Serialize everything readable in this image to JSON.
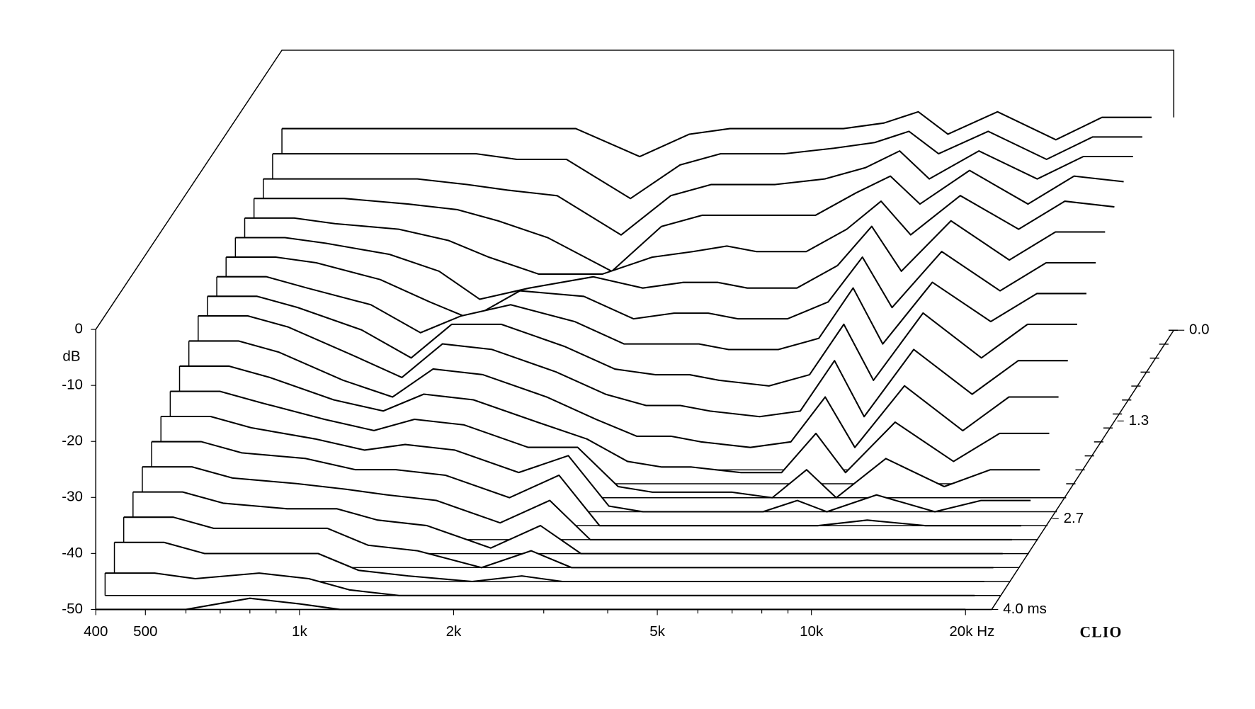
{
  "chart_data": {
    "type": "waterfall",
    "x": [
      400,
      500,
      600,
      800,
      1000,
      1200,
      1500,
      2000,
      2500,
      3000,
      3500,
      4000,
      5000,
      6000,
      7000,
      8000,
      10000,
      13000,
      16000,
      20000
    ],
    "z": [
      0,
      0.2,
      0.4,
      0.6,
      0.8,
      1.0,
      1.2,
      1.4,
      1.6,
      1.8,
      2.0,
      2.2,
      2.4,
      2.6,
      2.8,
      3.0,
      3.2,
      3.4,
      3.6,
      3.8,
      4.0
    ],
    "values": [
      [
        -14,
        -14,
        -14,
        -14,
        -14,
        -14,
        -14,
        -19,
        -15,
        -14,
        -14,
        -14,
        -14,
        -13,
        -11,
        -15,
        -11,
        -16,
        -12,
        -12
      ],
      [
        -16,
        -16,
        -16,
        -16,
        -16,
        -17,
        -17,
        -24,
        -18,
        -16,
        -16,
        -16,
        -15,
        -14,
        -12,
        -16,
        -12,
        -17,
        -13,
        -13
      ],
      [
        -18,
        -18,
        -18,
        -18,
        -19,
        -20,
        -21,
        -28,
        -21,
        -19,
        -19,
        -19,
        -18,
        -16,
        -13,
        -18,
        -13,
        -18,
        -14,
        -14
      ],
      [
        -19,
        -19,
        -19,
        -20,
        -21,
        -23,
        -26,
        -32,
        -24,
        -22,
        -22,
        -22,
        -22,
        -18,
        -15,
        -20,
        -14,
        -20,
        -15,
        -16
      ],
      [
        -20,
        -20,
        -21,
        -22,
        -24,
        -27,
        -30,
        -30,
        -27,
        -26,
        -25,
        -26,
        -26,
        -22,
        -17,
        -23,
        -16,
        -22,
        -17,
        -18
      ],
      [
        -21,
        -21,
        -22,
        -24,
        -27,
        -32,
        -30,
        -28,
        -30,
        -29,
        -29,
        -30,
        -30,
        -26,
        -19,
        -27,
        -18,
        -25,
        -20,
        -20
      ],
      [
        -22,
        -22,
        -23,
        -26,
        -30,
        -33,
        -28,
        -29,
        -33,
        -32,
        -32,
        -33,
        -33,
        -30,
        -22,
        -31,
        -21,
        -28,
        -23,
        -23
      ],
      [
        -23,
        -23,
        -25,
        -28,
        -33,
        -30,
        -28,
        -31,
        -35,
        -35,
        -35,
        -36,
        -36,
        -34,
        -25,
        -35,
        -24,
        -31,
        -26,
        -26
      ],
      [
        -24,
        -24,
        -26,
        -30,
        -35,
        -29,
        -29,
        -33,
        -37,
        -38,
        -38,
        -39,
        -40,
        -38,
        -29,
        -39,
        -27,
        -35,
        -29,
        -29
      ],
      [
        -25,
        -25,
        -27,
        -32,
        -36,
        -30,
        -31,
        -35,
        -39,
        -41,
        -41,
        -42,
        -43,
        -42,
        -33,
        -43,
        -31,
        -39,
        -33,
        -33
      ],
      [
        -27,
        -27,
        -29,
        -34,
        -37,
        -32,
        -33,
        -37,
        -41,
        -44,
        -44,
        -45,
        -46,
        -45,
        -37,
        -46,
        -35,
        -43,
        -37,
        -37
      ],
      [
        -29,
        -29,
        -31,
        -35,
        -37,
        -34,
        -35,
        -39,
        -42,
        -46,
        -47,
        -47,
        -48,
        -48,
        -41,
        -48,
        -39,
        -46,
        -41,
        -41
      ],
      [
        -31,
        -31,
        -33,
        -36,
        -38,
        -36,
        -37,
        -41,
        -41,
        -48,
        -49,
        -49,
        -49,
        -50,
        -45,
        -50,
        -43,
        -48,
        -45,
        -45
      ],
      [
        -33,
        -33,
        -35,
        -37,
        -39,
        -38,
        -39,
        -43,
        -40,
        -49,
        -50,
        -50,
        -50,
        -50,
        -48,
        -50,
        -47,
        -50,
        -48,
        -48
      ],
      [
        -35,
        -35,
        -37,
        -38,
        -40,
        -40,
        -41,
        -45,
        -41,
        -50,
        -50,
        -50,
        -50,
        -50,
        -50,
        -50,
        -49,
        -50,
        -50,
        -50
      ],
      [
        -37,
        -37,
        -39,
        -40,
        -41,
        -42,
        -43,
        -47,
        -43,
        -50,
        -50,
        -50,
        -50,
        -50,
        -50,
        -50,
        -50,
        -50,
        -50,
        -50
      ],
      [
        -39,
        -39,
        -41,
        -42,
        -42,
        -44,
        -45,
        -49,
        -45,
        -50,
        -50,
        -50,
        -50,
        -50,
        -50,
        -50,
        -50,
        -50,
        -50,
        -50
      ],
      [
        -41,
        -41,
        -43,
        -43,
        -43,
        -46,
        -47,
        -50,
        -47,
        -50,
        -50,
        -50,
        -50,
        -50,
        -50,
        -50,
        -50,
        -50,
        -50,
        -50
      ],
      [
        -43,
        -43,
        -45,
        -45,
        -45,
        -48,
        -49,
        -50,
        -49,
        -50,
        -50,
        -50,
        -50,
        -50,
        -50,
        -50,
        -50,
        -50,
        -50,
        -50
      ],
      [
        -46,
        -46,
        -47,
        -46,
        -47,
        -49,
        -50,
        -50,
        -50,
        -50,
        -50,
        -50,
        -50,
        -50,
        -50,
        -50,
        -50,
        -50,
        -50,
        -50
      ],
      [
        -50,
        -50,
        -50,
        -48,
        -49,
        -50,
        -50,
        -50,
        -50,
        -50,
        -50,
        -50,
        -50,
        -50,
        -50,
        -50,
        -50,
        -50,
        -50,
        -50
      ]
    ],
    "xlim": [
      400,
      22500
    ],
    "xscale": "log",
    "xticks": [
      400,
      500,
      {
        "value": 1000,
        "label": "1k"
      },
      {
        "value": 2000,
        "label": "2k"
      },
      {
        "value": 5000,
        "label": "5k"
      },
      {
        "value": 10000,
        "label": "10k"
      },
      {
        "value": 20000,
        "label": "20k Hz"
      }
    ],
    "xminorticks": [
      600,
      700,
      800,
      900,
      3000,
      4000,
      6000,
      7000,
      8000,
      9000
    ],
    "ylim": [
      -50,
      0
    ],
    "yticks": [
      0,
      -10,
      -20,
      -30,
      -40,
      -50
    ],
    "ylabel": "dB",
    "zlim": [
      0,
      4
    ],
    "zticks": [
      {
        "value": 0,
        "label": "0.0"
      },
      1.3,
      2.7,
      {
        "value": 4,
        "label": "4.0 ms"
      }
    ],
    "line_color": "#000000",
    "fill_color": "#ffffff",
    "brand": "CLIO"
  }
}
